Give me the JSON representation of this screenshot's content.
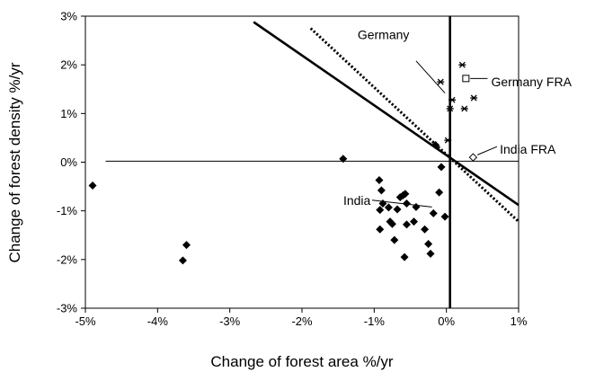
{
  "chart_data": {
    "type": "scatter",
    "xlabel": "Change of forest area %/yr",
    "ylabel": "Change of forest density  %/yr",
    "xlim": [
      -5,
      1
    ],
    "ylim": [
      -3,
      3
    ],
    "x_ticks": [
      "-5%",
      "-4%",
      "-3%",
      "-2%",
      "-1%",
      "0%",
      "1%"
    ],
    "y_ticks": [
      "-3%",
      "-2%",
      "-1%",
      "0%",
      "1%",
      "2%",
      "3%"
    ],
    "grid": false,
    "legend": "none",
    "series": [
      {
        "marker": "diamond-filled",
        "color": "#000000",
        "points": [
          [
            -4.9,
            -0.48
          ],
          [
            -3.65,
            -2.02
          ],
          [
            -3.6,
            -1.7
          ],
          [
            -1.43,
            0.07
          ],
          [
            -0.93,
            -0.37
          ],
          [
            -0.9,
            -0.58
          ],
          [
            -0.92,
            -0.98
          ],
          [
            -0.88,
            -0.85
          ],
          [
            -0.8,
            -0.93
          ],
          [
            -0.78,
            -1.22
          ],
          [
            -0.75,
            -1.27
          ],
          [
            -0.92,
            -1.38
          ],
          [
            -0.72,
            -1.6
          ],
          [
            -0.68,
            -0.97
          ],
          [
            -0.64,
            -0.72
          ],
          [
            -0.6,
            -0.68
          ],
          [
            -0.57,
            -0.65
          ],
          [
            -0.55,
            -0.85
          ],
          [
            -0.55,
            -1.28
          ],
          [
            -0.58,
            -1.95
          ],
          [
            -0.45,
            -1.22
          ],
          [
            -0.42,
            -0.92
          ],
          [
            -0.3,
            -1.38
          ],
          [
            -0.25,
            -1.68
          ],
          [
            -0.22,
            -1.88
          ],
          [
            -0.18,
            -1.05
          ],
          [
            -0.1,
            -0.62
          ],
          [
            -0.07,
            -0.1
          ],
          [
            -0.02,
            -1.12
          ],
          [
            -0.15,
            0.35
          ]
        ]
      },
      {
        "marker": "star",
        "color": "#000000",
        "points": [
          [
            -0.08,
            1.65
          ],
          [
            0.05,
            1.1
          ],
          [
            0.08,
            1.28
          ],
          [
            0.22,
            2.0
          ],
          [
            0.25,
            1.1
          ],
          [
            0.38,
            1.32
          ],
          [
            0.02,
            0.45
          ]
        ]
      },
      {
        "marker": "square-open",
        "color": "#000000",
        "points": [
          [
            0.27,
            1.72
          ]
        ]
      },
      {
        "marker": "diamond-open",
        "color": "#000000",
        "points": [
          [
            0.37,
            0.1
          ]
        ]
      }
    ],
    "lines": [
      {
        "style": "solid-thick",
        "from": [
          -2.67,
          2.88
        ],
        "to": [
          1.0,
          -0.88
        ]
      },
      {
        "style": "dotted-thick",
        "from": [
          -1.88,
          2.75
        ],
        "to": [
          1.0,
          -1.22
        ]
      },
      {
        "style": "solid-thin",
        "from": [
          -4.72,
          0.02
        ],
        "to": [
          1.0,
          0.02
        ]
      },
      {
        "style": "solid-thick",
        "from": [
          0.05,
          3.0
        ],
        "to": [
          0.05,
          -3.0
        ]
      }
    ],
    "annotations": [
      {
        "text": "Germany",
        "anchor": "start",
        "label_at": [
          -1.23,
          2.62
        ],
        "leader_from": [
          -0.42,
          2.08
        ],
        "leader_to": [
          -0.02,
          1.42
        ]
      },
      {
        "text": "Germany FRA",
        "anchor": "start",
        "label_at": [
          0.62,
          1.65
        ],
        "leader_from": [
          0.33,
          1.72
        ],
        "leader_to": [
          0.57,
          1.72
        ]
      },
      {
        "text": "India FRA",
        "anchor": "start",
        "label_at": [
          0.74,
          0.27
        ],
        "leader_from": [
          0.43,
          0.15
        ],
        "leader_to": [
          0.7,
          0.32
        ]
      },
      {
        "text": "India",
        "anchor": "end",
        "label_at": [
          -1.05,
          -0.78
        ],
        "leader_from": [
          -1.03,
          -0.78
        ],
        "leader_to": [
          -0.2,
          -0.92
        ]
      }
    ]
  }
}
